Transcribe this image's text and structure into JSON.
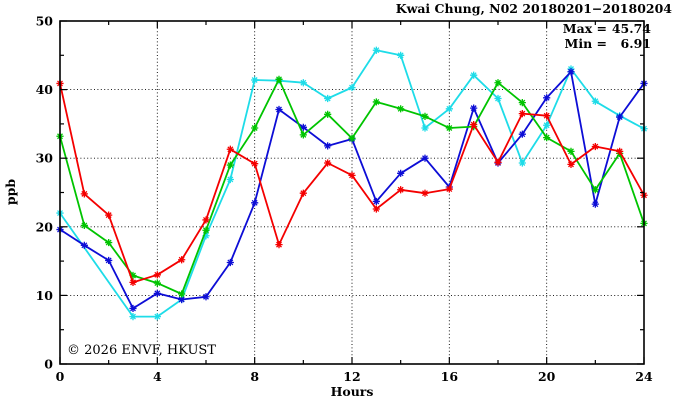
{
  "title": "Kwai Chung, N02 20180201−20180204",
  "annotations": {
    "max_label": "Max =",
    "max_value": "45.74",
    "min_label": "Min =",
    "min_value": "6.91"
  },
  "watermark": "© 2026 ENVF, HKUST",
  "axes": {
    "y_label": "ppb",
    "x_label": "Hours"
  },
  "chart_data": {
    "type": "line",
    "title": "Kwai Chung, N02 20180201−20180204",
    "xlabel": "Hours",
    "ylabel": "ppb",
    "xlim": [
      0,
      24
    ],
    "ylim": [
      0,
      50
    ],
    "x_major_ticks": [
      0,
      4,
      8,
      12,
      16,
      20,
      24
    ],
    "x_minor_ticks": [
      2,
      6,
      10,
      14,
      18,
      22
    ],
    "y_major_ticks": [
      0,
      10,
      20,
      30,
      40,
      50
    ],
    "y_minor_ticks": [
      5,
      15,
      25,
      35,
      45
    ],
    "grid_x": [
      4,
      8,
      12,
      16,
      20
    ],
    "grid_y": [
      10,
      20,
      30,
      40
    ],
    "grid_style": "dotted",
    "legend_position": "none",
    "stat_max": 45.74,
    "stat_min": 6.91,
    "marker": "star",
    "x": [
      0,
      1,
      2,
      3,
      4,
      5,
      6,
      7,
      8,
      9,
      10,
      11,
      12,
      13,
      14,
      15,
      16,
      17,
      18,
      19,
      20,
      21,
      22,
      23,
      24
    ],
    "series": [
      {
        "name": "series-cyan",
        "color": "#1edce8",
        "values": [
          22.0,
          null,
          null,
          6.91,
          6.91,
          9.4,
          18.7,
          26.9,
          41.4,
          41.3,
          41.0,
          38.7,
          40.3,
          45.74,
          45.0,
          34.4,
          37.2,
          42.1,
          38.7,
          29.3,
          34.8,
          43.0,
          38.3,
          36.2,
          34.3
        ]
      },
      {
        "name": "series-blue",
        "color": "#0d0dd6",
        "values": [
          19.6,
          17.3,
          15.1,
          8.1,
          10.3,
          9.4,
          9.8,
          14.8,
          23.5,
          37.1,
          34.5,
          31.8,
          32.8,
          23.7,
          27.8,
          30.0,
          25.8,
          37.3,
          29.3,
          33.5,
          38.8,
          42.6,
          23.3,
          36.0,
          40.9
        ]
      },
      {
        "name": "series-green",
        "color": "#00c400",
        "values": [
          33.2,
          20.2,
          17.7,
          12.9,
          11.8,
          10.2,
          19.5,
          29.0,
          34.4,
          41.5,
          33.4,
          36.4,
          32.9,
          38.2,
          37.2,
          36.1,
          34.4,
          34.6,
          41.0,
          38.1,
          33.0,
          31.0,
          25.4,
          30.7,
          20.5
        ]
      },
      {
        "name": "series-red",
        "color": "#f40000",
        "values": [
          40.9,
          24.8,
          21.7,
          11.9,
          13.0,
          15.2,
          21.0,
          31.3,
          29.2,
          17.4,
          24.9,
          29.3,
          27.5,
          22.6,
          25.4,
          24.9,
          25.5,
          34.9,
          29.4,
          36.5,
          36.2,
          29.1,
          31.7,
          31.0,
          24.6
        ]
      }
    ]
  }
}
